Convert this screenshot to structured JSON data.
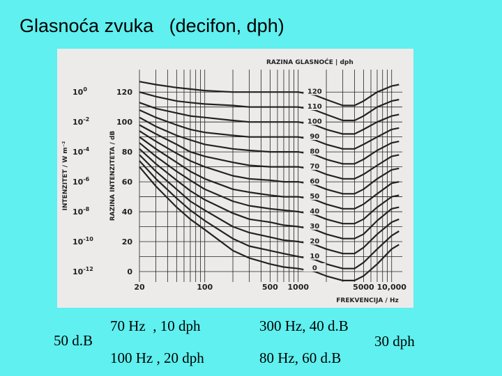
{
  "slide": {
    "title": "Glasnoća zvuka   (decifon, dph)"
  },
  "notes": {
    "left": "50 d.B",
    "row1_col1": "70 Hz  , 10 dph",
    "row1_col2": "300 Hz, 40 d.B",
    "row2_col1": "100 Hz , 20 dph",
    "row2_col2": "80 Hz, 60 d.B",
    "right": "30 dph"
  },
  "colors": {
    "background": "#5ff0ef",
    "panel": "#ecebea",
    "ink": "#222222"
  },
  "chart_data": {
    "type": "line",
    "title": "RAZINA GLASNOĆE",
    "title_unit": "dph",
    "xlabel": "FREKVENCIJA",
    "xlabel_unit": "Hz",
    "x_scale": "log",
    "xlim": [
      20,
      13000
    ],
    "x_tick_labels": [
      {
        "value": 20,
        "label": "20"
      },
      {
        "value": 100,
        "label": "100"
      },
      {
        "value": 500,
        "label": "500"
      },
      {
        "value": 1000,
        "label": "1000"
      },
      {
        "value": 5000,
        "label": "5000"
      },
      {
        "value": 10000,
        "label": "10,000"
      }
    ],
    "ylabel_left": "INTENZITET / W m⁻²",
    "ylabel_left_ticks": [
      {
        "exp": "0",
        "db": 120
      },
      {
        "exp": "-2",
        "db": 100
      },
      {
        "exp": "-4",
        "db": 80
      },
      {
        "exp": "-6",
        "db": 60
      },
      {
        "exp": "-8",
        "db": 40
      },
      {
        "exp": "-10",
        "db": 20
      },
      {
        "exp": "-12",
        "db": 0
      }
    ],
    "ylabel": "RAZINA INTENZITETA",
    "ylabel_unit": "dB",
    "y_tick_labels": [
      {
        "value": 120,
        "label": "120"
      },
      {
        "value": 100,
        "label": "100"
      },
      {
        "value": 80,
        "label": "80"
      },
      {
        "value": 60,
        "label": "60"
      },
      {
        "value": 40,
        "label": "40"
      },
      {
        "value": 20,
        "label": "20"
      },
      {
        "value": 0,
        "label": "0"
      }
    ],
    "ylim": [
      -7,
      135
    ],
    "grid": true,
    "x": [
      20,
      30,
      50,
      70,
      100,
      200,
      300,
      500,
      700,
      1000,
      1500,
      2000,
      3000,
      4000,
      5000,
      7000,
      10000,
      12000
    ],
    "series": [
      {
        "name": "120",
        "values": [
          127,
          125,
          123,
          122,
          121,
          120,
          120,
          120,
          120,
          120,
          118,
          115,
          111,
          111,
          114,
          120,
          124,
          125
        ]
      },
      {
        "name": "110",
        "values": [
          120,
          117,
          114,
          113,
          112,
          111,
          110,
          110,
          110,
          110,
          108,
          105,
          101,
          101,
          104,
          110,
          114,
          115
        ]
      },
      {
        "name": "100",
        "values": [
          113,
          109,
          106,
          104,
          103,
          101,
          100,
          100,
          100,
          100,
          98,
          95,
          92,
          92,
          95,
          100,
          104,
          105
        ]
      },
      {
        "name": "90",
        "values": [
          108,
          103,
          98,
          95,
          93,
          91,
          90,
          90,
          90,
          90,
          88,
          85,
          82,
          82,
          85,
          90,
          95,
          96
        ]
      },
      {
        "name": "80",
        "values": [
          103,
          97,
          91,
          88,
          85,
          82,
          81,
          80,
          80,
          80,
          78,
          75,
          72,
          72,
          75,
          81,
          86,
          87
        ]
      },
      {
        "name": "70",
        "values": [
          98,
          92,
          85,
          80,
          77,
          73,
          71,
          70,
          70,
          70,
          68,
          65,
          62,
          62,
          65,
          71,
          77,
          78
        ]
      },
      {
        "name": "60",
        "values": [
          94,
          87,
          79,
          74,
          70,
          64,
          62,
          61,
          60,
          60,
          58,
          55,
          52,
          52,
          55,
          62,
          68,
          69
        ]
      },
      {
        "name": "50",
        "values": [
          90,
          82,
          73,
          67,
          62,
          55,
          53,
          51,
          50,
          50,
          48,
          45,
          42,
          42,
          45,
          52,
          59,
          60
        ]
      },
      {
        "name": "40",
        "values": [
          86,
          77,
          67,
          61,
          55,
          47,
          44,
          42,
          41,
          40,
          38,
          35,
          32,
          32,
          35,
          43,
          50,
          51
        ]
      },
      {
        "name": "30",
        "values": [
          82,
          72,
          61,
          54,
          48,
          39,
          35,
          33,
          31,
          30,
          28,
          25,
          22,
          22,
          25,
          34,
          42,
          43
        ]
      },
      {
        "name": "20",
        "values": [
          78,
          67,
          55,
          47,
          41,
          30,
          26,
          23,
          21,
          20,
          18,
          15,
          12,
          12,
          16,
          25,
          33,
          35
        ]
      },
      {
        "name": "10",
        "values": [
          74,
          62,
          49,
          41,
          34,
          22,
          17,
          14,
          12,
          10,
          8,
          5,
          2,
          2,
          6,
          15,
          24,
          27
        ]
      },
      {
        "name": "0",
        "values": [
          70,
          57,
          43,
          35,
          28,
          14,
          9,
          5,
          3,
          2,
          0,
          -3,
          -6,
          -6,
          -3,
          5,
          15,
          18
        ]
      }
    ]
  }
}
